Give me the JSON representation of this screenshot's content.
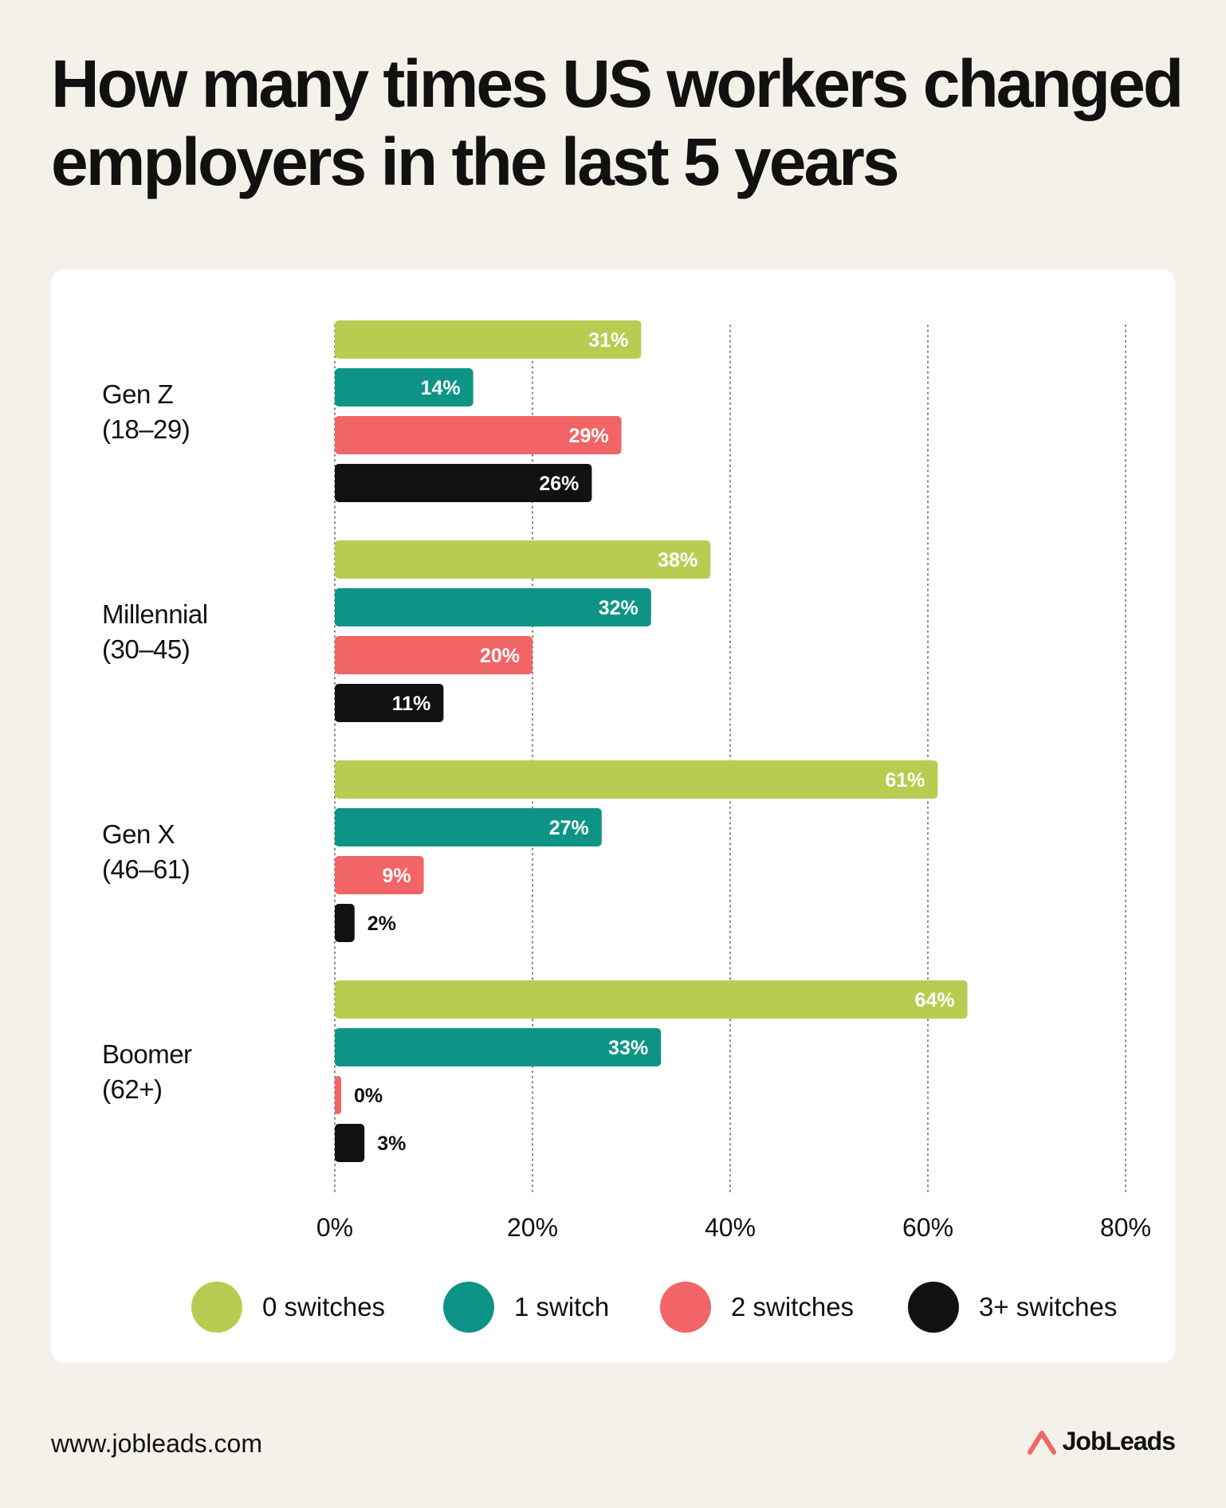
{
  "title": "How many times US workers changed employers in the last 5 years",
  "footer": {
    "url": "www.jobleads.com",
    "brand": "JobLeads"
  },
  "colors": {
    "background": "#f4f1ea",
    "card": "#ffffff",
    "zero_switches": "#b9cc52",
    "one_switch": "#0e9486",
    "two_switches": "#f26566",
    "three_plus_switches": "#111111",
    "logo": "#f26566"
  },
  "chart_data": {
    "type": "bar",
    "orientation": "horizontal",
    "categories": [
      [
        "Gen Z",
        "(18–29)"
      ],
      [
        "Millennial",
        "(30–45)"
      ],
      [
        "Gen X",
        "(46–61)"
      ],
      [
        "Boomer",
        "(62+)"
      ]
    ],
    "series": [
      {
        "name": "0 switches",
        "color": "#b9cc52",
        "values": [
          31,
          38,
          61,
          64
        ]
      },
      {
        "name": "1 switch",
        "color": "#0e9486",
        "values": [
          14,
          32,
          27,
          33
        ]
      },
      {
        "name": "2 switches",
        "color": "#f26566",
        "values": [
          29,
          20,
          9,
          0
        ]
      },
      {
        "name": "3+ switches",
        "color": "#111111",
        "values": [
          26,
          11,
          2,
          3
        ]
      }
    ],
    "value_suffix": "%",
    "xlim": [
      0,
      80
    ],
    "xticks": [
      0,
      20,
      40,
      60,
      80
    ],
    "xtick_labels": [
      "0%",
      "20%",
      "40%",
      "60%",
      "80%"
    ],
    "grid": "vertical dotted",
    "legend_position": "bottom",
    "data_labels": true
  }
}
